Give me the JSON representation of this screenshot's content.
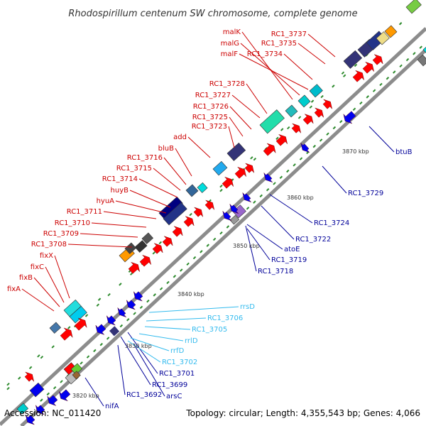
{
  "title": "Rhodospirillum centenum SW chromosome, complete genome",
  "footer": {
    "accession": "Accession: NC_011420",
    "summary": "Topology: circular; Length: 4,355,543 bp; Genes: 4,066"
  },
  "colors": {
    "backbone": "#8c8c8c",
    "forward_label": "#cc0000",
    "reverse_label": "#000099",
    "rna_label": "#33bbee",
    "tick": "#2e8b2e",
    "cds": "#ff0000",
    "reverse_cds": "#0000ee"
  },
  "scale_labels": [
    "3820 kbp",
    "3830 kbp",
    "3840 kbp",
    "3850 kbp",
    "3860 kbp",
    "3870 kbp"
  ],
  "forward_labels": [
    "malK",
    "malG",
    "malF",
    "RC1_3737",
    "RC1_3735",
    "RC1_3734",
    "RC1_3728",
    "RC1_3727",
    "RC1_3726",
    "RC1_3725",
    "RC1_3723",
    "add",
    "bluB",
    "RC1_3716",
    "RC1_3715",
    "RC1_3714",
    "huyB",
    "hyuA",
    "RC1_3711",
    "RC1_3710",
    "RC1_3709",
    "RC1_3708",
    "fixX",
    "fixC",
    "fixB",
    "fixA"
  ],
  "reverse_labels": [
    "btuB",
    "RC1_3729",
    "RC1_3724",
    "RC1_3722",
    "atoE",
    "RC1_3719",
    "RC1_3718",
    "RC1_3701",
    "RC1_3699",
    "RC1_3692",
    "arsC",
    "nifA"
  ],
  "rna_labels": [
    "rrsD",
    "RC1_3706",
    "RC1_3705",
    "rrlD",
    "rrfD",
    "RC1_3702"
  ]
}
